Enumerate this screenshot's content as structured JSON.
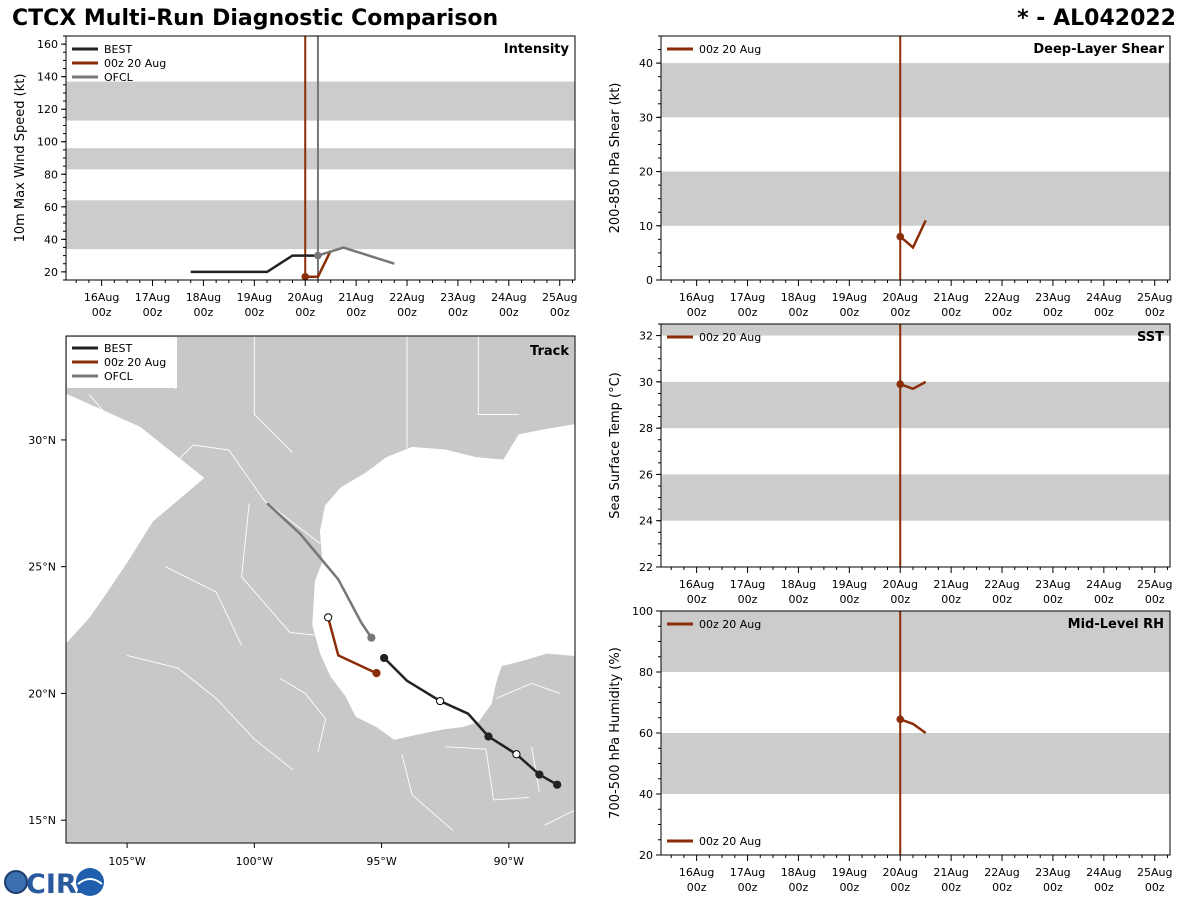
{
  "header": {
    "title": "CTCX Multi-Run Diagnostic Comparison",
    "storm": "* - AL042022"
  },
  "logo": {
    "text": "CIRA"
  },
  "colors": {
    "best": "#222222",
    "run": "#8b2e08",
    "ofcl": "#777777",
    "band": "#cccccc",
    "land": "#c8c8c8"
  },
  "days": [
    {
      "day": "16Aug",
      "hour": "00z"
    },
    {
      "day": "17Aug",
      "hour": "00z"
    },
    {
      "day": "18Aug",
      "hour": "00z"
    },
    {
      "day": "19Aug",
      "hour": "00z"
    },
    {
      "day": "20Aug",
      "hour": "00z"
    },
    {
      "day": "21Aug",
      "hour": "00z"
    },
    {
      "day": "22Aug",
      "hour": "00z"
    },
    {
      "day": "23Aug",
      "hour": "00z"
    },
    {
      "day": "24Aug",
      "hour": "00z"
    },
    {
      "day": "25Aug",
      "hour": "00z"
    }
  ],
  "chart_data": [
    {
      "id": "intensity",
      "type": "line",
      "title": "Intensity",
      "ylabel": "10m Max Wind Speed (kt)",
      "xunit": "days since 16Aug 00z",
      "xlim": [
        -0.7,
        9.3
      ],
      "ylim": [
        15,
        165
      ],
      "yticks": [
        20,
        40,
        60,
        80,
        100,
        120,
        140,
        160
      ],
      "bands": [
        [
          34,
          64
        ],
        [
          83,
          96
        ],
        [
          113,
          137
        ]
      ],
      "vlines": [
        {
          "x": 4.0,
          "series": "00z 20 Aug"
        },
        {
          "x": 4.25,
          "series": "OFCL"
        }
      ],
      "legend": [
        "BEST",
        "00z 20 Aug",
        "OFCL"
      ],
      "series": [
        {
          "name": "BEST",
          "color": "#222222",
          "x": [
            1.75,
            2.0,
            2.25,
            2.5,
            2.75,
            3.0,
            3.25,
            3.5,
            3.75,
            4.0,
            4.25
          ],
          "y": [
            20,
            20,
            20,
            20,
            20,
            20,
            20,
            25,
            30,
            30,
            30
          ]
        },
        {
          "name": "00z 20 Aug",
          "color": "#8b2e08",
          "x": [
            4.0,
            4.25,
            4.5
          ],
          "y": [
            17,
            17,
            33
          ],
          "marker_index": 0
        },
        {
          "name": "OFCL",
          "color": "#777777",
          "x": [
            4.25,
            4.75,
            5.75
          ],
          "y": [
            30,
            35,
            25
          ],
          "marker_index": 0
        }
      ]
    },
    {
      "id": "track",
      "type": "line",
      "title": "Track",
      "lon_ticks": [
        -105,
        -100,
        -95,
        -90
      ],
      "lon_labels": [
        "105°W",
        "100°W",
        "95°W",
        "90°W"
      ],
      "lat_ticks": [
        15,
        20,
        25,
        30
      ],
      "lat_labels": [
        "15°N",
        "20°N",
        "25°N",
        "30°N"
      ],
      "xlim": [
        -107.4,
        -87.4
      ],
      "ylim": [
        14.1,
        34.1
      ],
      "legend": [
        "BEST",
        "00z 20 Aug",
        "OFCL"
      ],
      "series": [
        {
          "name": "BEST",
          "color": "#222222",
          "lon": [
            -88.1,
            -88.8,
            -89.7,
            -90.8,
            -91.6,
            -92.7,
            -94.0,
            -94.9
          ],
          "lat": [
            16.4,
            16.8,
            17.6,
            18.3,
            19.2,
            19.7,
            20.5,
            21.4
          ],
          "markers": [
            {
              "i": 0,
              "open": false
            },
            {
              "i": 1,
              "open": false
            },
            {
              "i": 2,
              "open": true
            },
            {
              "i": 3,
              "open": false
            },
            {
              "i": 5,
              "open": true
            },
            {
              "i": 7,
              "open": false
            }
          ]
        },
        {
          "name": "00z 20 Aug",
          "color": "#8b2e08",
          "lon": [
            -95.2,
            -96.7,
            -97.1
          ],
          "lat": [
            20.8,
            21.5,
            23.0
          ],
          "markers": [
            {
              "i": 0,
              "open": false
            },
            {
              "i": 2,
              "open": true
            }
          ]
        },
        {
          "name": "OFCL",
          "color": "#777777",
          "lon": [
            -95.4,
            -95.8,
            -96.7,
            -98.2,
            -99.5
          ],
          "lat": [
            22.2,
            22.8,
            24.5,
            26.3,
            27.5
          ],
          "markers": [
            {
              "i": 0,
              "open": false
            }
          ]
        }
      ]
    },
    {
      "id": "shear",
      "type": "line",
      "title": "Deep-Layer Shear",
      "ylabel": "200-850 hPa Shear (kt)",
      "xlim": [
        -0.7,
        9.3
      ],
      "ylim": [
        0,
        45
      ],
      "yticks": [
        0,
        10,
        20,
        30,
        40
      ],
      "bands": [
        [
          10,
          20
        ],
        [
          30,
          40
        ]
      ],
      "vlines": [
        {
          "x": 4.0,
          "series": "00z 20 Aug"
        }
      ],
      "legend": [
        "00z 20 Aug"
      ],
      "series": [
        {
          "name": "00z 20 Aug",
          "color": "#8b2e08",
          "x": [
            4.0,
            4.25,
            4.5
          ],
          "y": [
            8,
            6,
            11
          ],
          "marker_index": 0
        }
      ]
    },
    {
      "id": "sst",
      "type": "line",
      "title": "SST",
      "ylabel": "Sea Surface Temp (°C)",
      "xlim": [
        -0.7,
        9.3
      ],
      "ylim": [
        22,
        32.5
      ],
      "yticks": [
        22,
        24,
        26,
        28,
        30,
        32
      ],
      "bands": [
        [
          24,
          26
        ],
        [
          28,
          30
        ],
        [
          32,
          32.5
        ]
      ],
      "vlines": [
        {
          "x": 4.0,
          "series": "00z 20 Aug"
        }
      ],
      "legend": [
        "00z 20 Aug"
      ],
      "series": [
        {
          "name": "00z 20 Aug",
          "color": "#8b2e08",
          "x": [
            4.0,
            4.25,
            4.5
          ],
          "y": [
            29.9,
            29.7,
            30.0
          ],
          "marker_index": 0
        }
      ]
    },
    {
      "id": "rh",
      "type": "line",
      "title": "Mid-Level RH",
      "ylabel": "700-500 hPa Humidity (%)",
      "xlim": [
        -0.7,
        9.3
      ],
      "ylim": [
        20,
        100
      ],
      "yticks": [
        20,
        40,
        60,
        80,
        100
      ],
      "bands": [
        [
          40,
          60
        ],
        [
          80,
          100
        ]
      ],
      "vlines": [
        {
          "x": 4.0,
          "series": "00z 20 Aug"
        }
      ],
      "legend": [
        "00z 20 Aug"
      ],
      "series": [
        {
          "name": "00z 20 Aug",
          "color": "#8b2e08",
          "x": [
            4.0,
            4.25,
            4.5
          ],
          "y": [
            64.5,
            63,
            60
          ],
          "marker_index": 0
        }
      ]
    }
  ]
}
